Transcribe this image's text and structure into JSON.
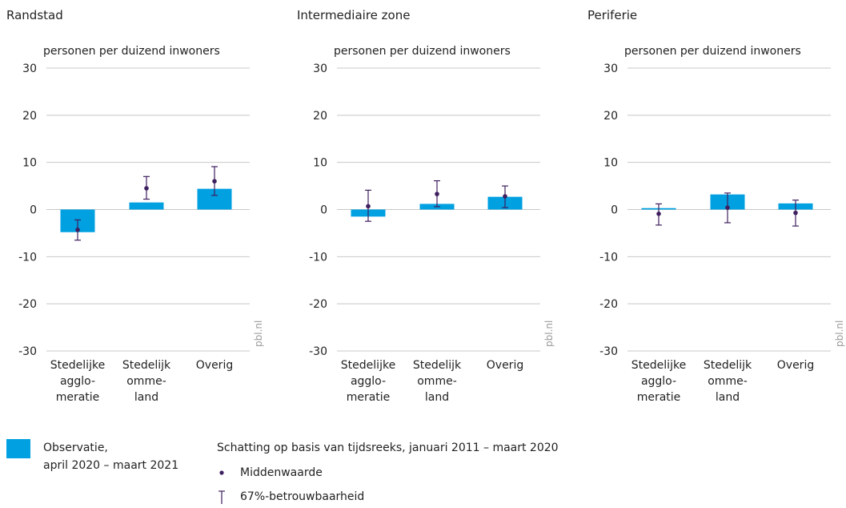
{
  "colors": {
    "bar": "#00a0e1",
    "estimate": "#3e1f5f",
    "grid": "#c8c8c8",
    "text": "#222222",
    "watermark": "#9a9a9a"
  },
  "chart_data": [
    {
      "type": "bar",
      "title": "Randstad",
      "ylabel": "personen per duizend inwoners",
      "ylim": [
        -30,
        30
      ],
      "yticks": [
        30,
        20,
        10,
        0,
        -10,
        -20,
        -30
      ],
      "yticklabels": [
        "30",
        "20",
        "10",
        "0",
        "-10",
        "-20",
        "-30"
      ],
      "categories": [
        [
          "Stedelijke",
          "agglo-",
          "meratie"
        ],
        [
          "Stedelijk",
          "omme-",
          "land"
        ],
        [
          "Overig"
        ]
      ],
      "series": [
        {
          "name": "Observatie, april 2020 – maart 2021",
          "values": [
            -4.8,
            1.5,
            4.4
          ]
        },
        {
          "name": "Middenwaarde",
          "values": [
            -4.3,
            4.5,
            6.0
          ]
        }
      ],
      "error_low": [
        -6.5,
        2.2,
        3.0
      ],
      "error_high": [
        -2.2,
        7.0,
        9.1
      ],
      "watermark": "pbl.nl"
    },
    {
      "type": "bar",
      "title": "Intermediaire zone",
      "ylabel": "personen per duizend inwoners",
      "ylim": [
        -30,
        30
      ],
      "yticks": [
        30,
        20,
        10,
        0,
        -10,
        -20,
        -30
      ],
      "yticklabels": [
        "30",
        "20",
        "10",
        "0",
        "-10",
        "-20",
        "-30"
      ],
      "categories": [
        [
          "Stedelijke",
          "agglo-",
          "meratie"
        ],
        [
          "Stedelijk",
          "omme-",
          "land"
        ],
        [
          "Overig"
        ]
      ],
      "series": [
        {
          "name": "Observatie, april 2020 – maart 2021",
          "values": [
            -1.5,
            1.2,
            2.7
          ]
        },
        {
          "name": "Middenwaarde",
          "values": [
            0.7,
            3.3,
            2.8
          ]
        }
      ],
      "error_low": [
        -2.5,
        0.6,
        0.4
      ],
      "error_high": [
        4.1,
        6.1,
        5.0
      ],
      "watermark": "pbl.nl"
    },
    {
      "type": "bar",
      "title": "Periferie",
      "ylabel": "personen per duizend inwoners",
      "ylim": [
        -30,
        30
      ],
      "yticks": [
        30,
        20,
        10,
        0,
        -10,
        -20,
        -30
      ],
      "yticklabels": [
        "30",
        "20",
        "10",
        "0",
        "-10",
        "-20",
        "-30"
      ],
      "categories": [
        [
          "Stedelijke",
          "agglo-",
          "meratie"
        ],
        [
          "Stedelijk",
          "omme-",
          "land"
        ],
        [
          "Overig"
        ]
      ],
      "series": [
        {
          "name": "Observatie, april 2020 – maart 2021",
          "values": [
            0.3,
            3.2,
            1.3
          ]
        },
        {
          "name": "Middenwaarde",
          "values": [
            -0.9,
            0.4,
            -0.7
          ]
        }
      ],
      "error_low": [
        -3.3,
        -2.8,
        -3.5
      ],
      "error_high": [
        1.2,
        3.5,
        2.0
      ],
      "watermark": "pbl.nl"
    }
  ],
  "legend": {
    "observatie_lines": [
      "Observatie,",
      "april 2020 – maart 2021"
    ],
    "schatting_title": "Schatting op basis van tijdsreeks, januari 2011 – maart 2020",
    "middenwaarde_label": "Middenwaarde",
    "betrouwbaarheid_label": "67%-betrouwbaarheid"
  }
}
